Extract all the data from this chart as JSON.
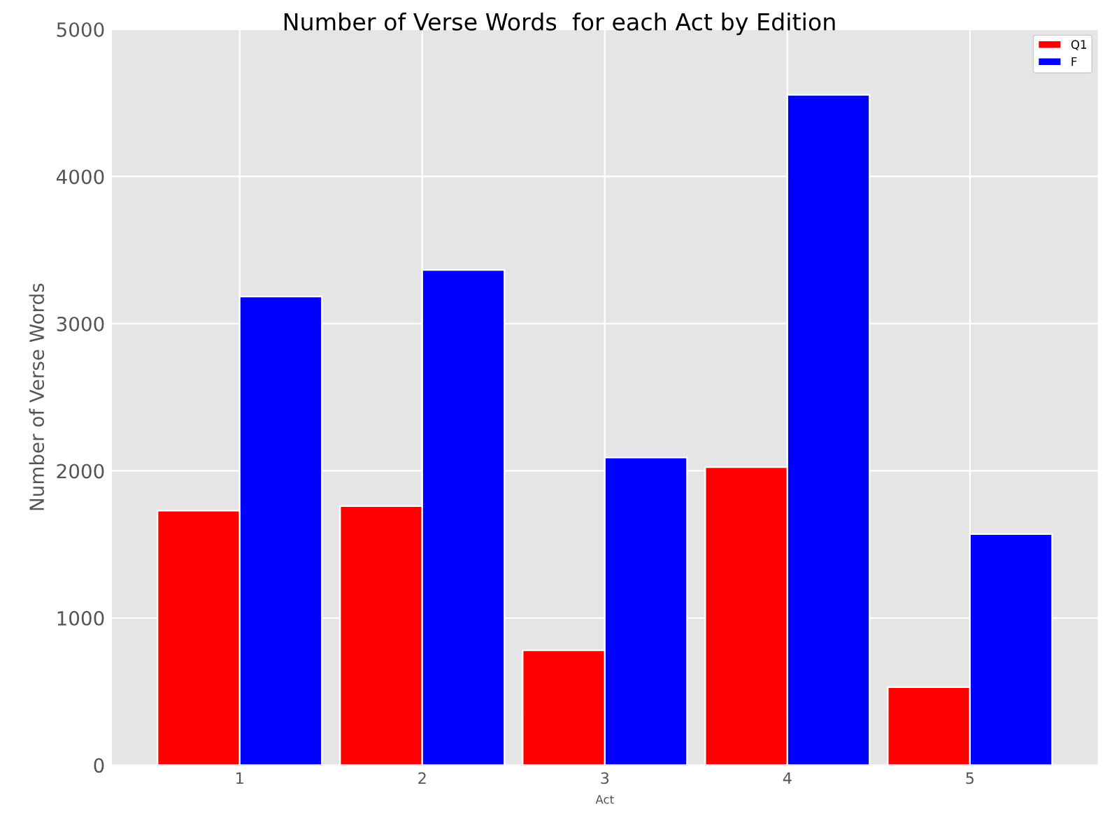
{
  "chart_data": {
    "type": "bar",
    "title": "Number of Verse Words  for each Act by Edition",
    "xlabel": "Act",
    "ylabel": "Number of Verse Words",
    "categories": [
      "1",
      "2",
      "3",
      "4",
      "5"
    ],
    "series": [
      {
        "name": "Q1",
        "color": "#ff0000",
        "values": [
          1730,
          1760,
          780,
          2025,
          530
        ]
      },
      {
        "name": "F",
        "color": "#0000ff",
        "values": [
          3185,
          3365,
          2090,
          4555,
          1570
        ]
      }
    ],
    "ylim": [
      0,
      5000
    ],
    "yticks": [
      0,
      1000,
      2000,
      3000,
      4000,
      5000
    ],
    "grid": true,
    "legend": "top right"
  }
}
